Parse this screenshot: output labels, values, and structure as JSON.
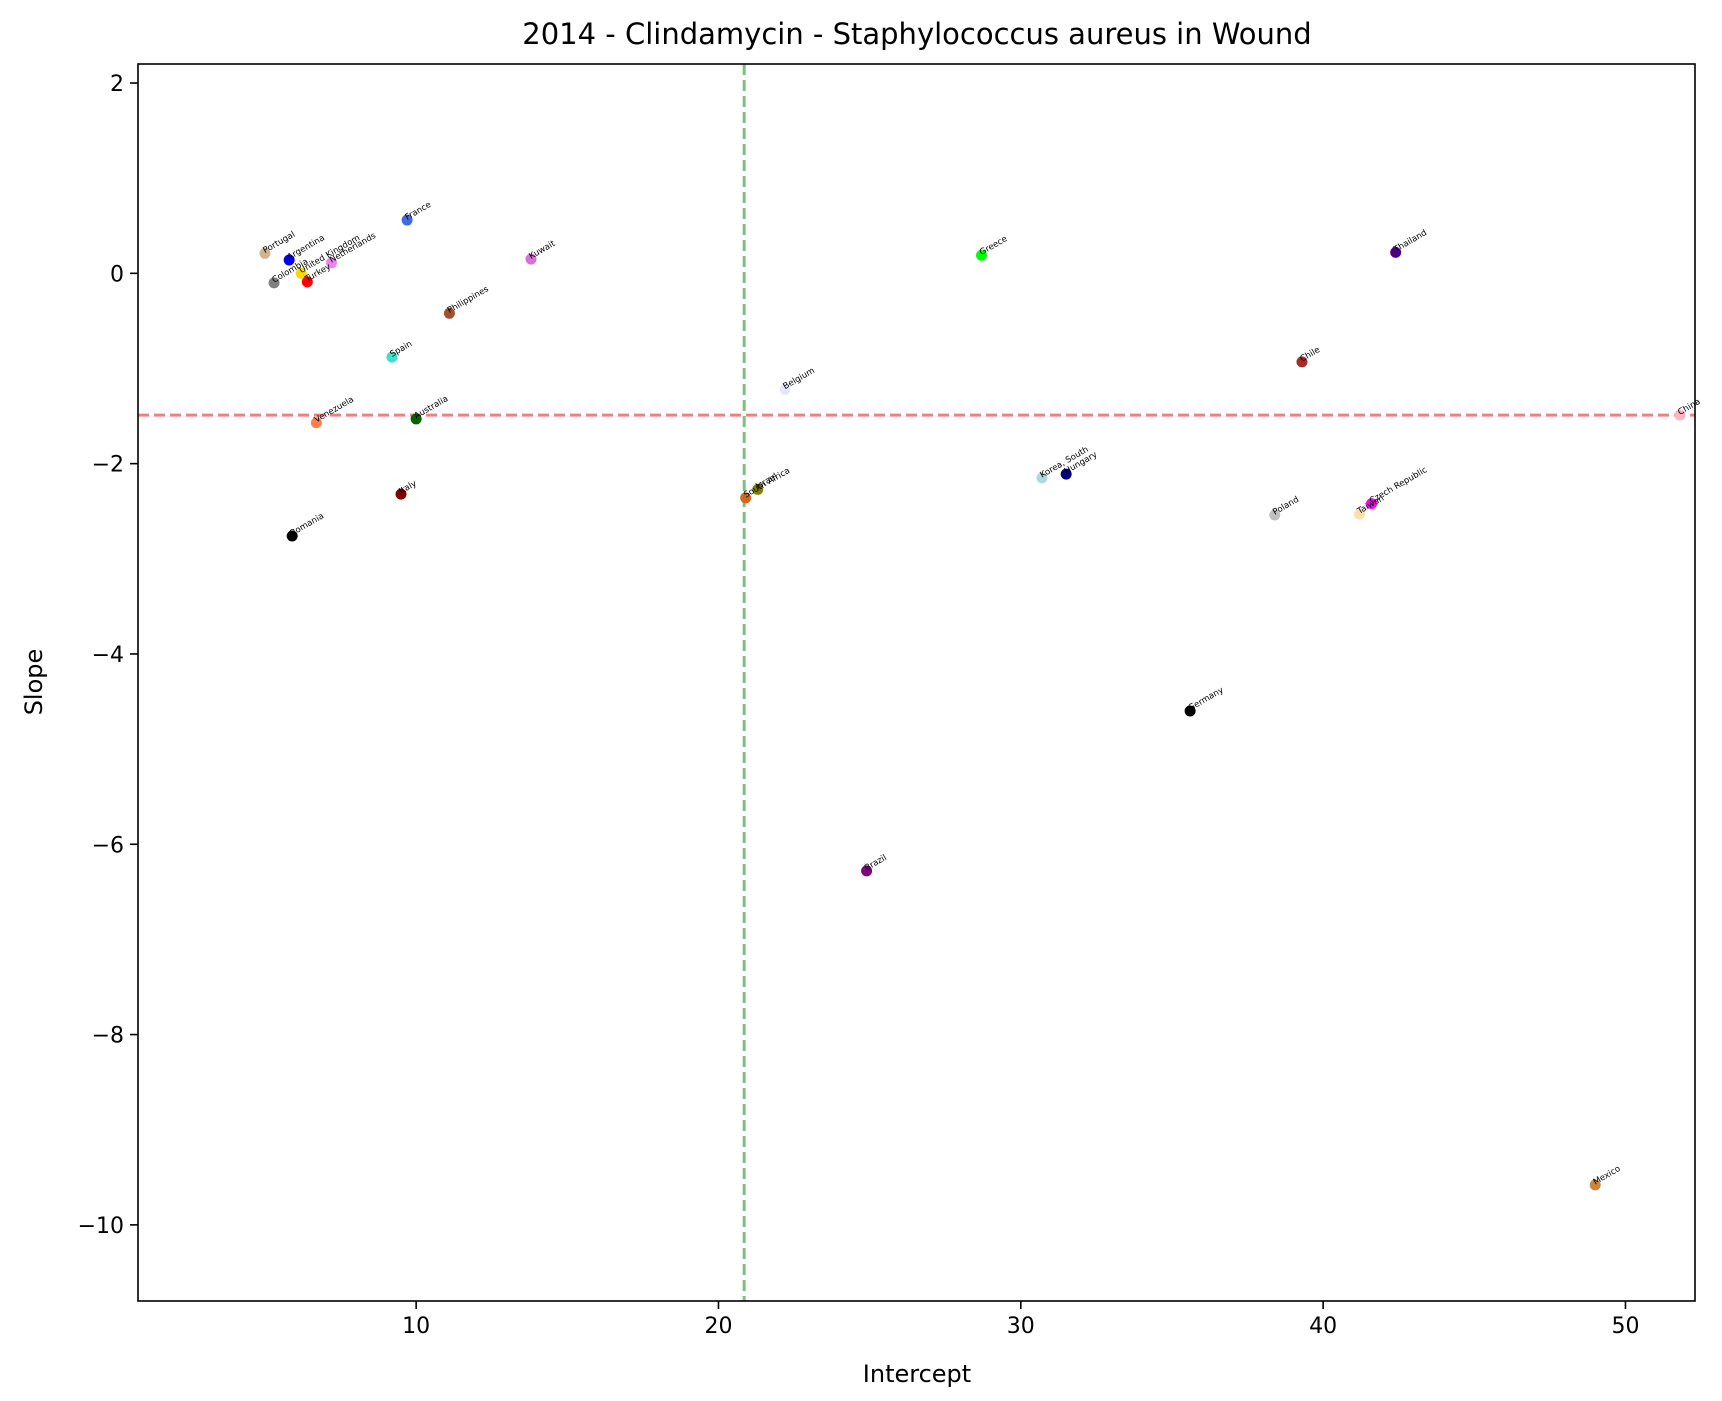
{
  "chart_data": {
    "type": "scatter",
    "title": "2014 - Clindamycin - Staphylococcus aureus in Wound",
    "xlabel": "Intercept",
    "ylabel": "Slope",
    "xlim": [
      0.8,
      52.3
    ],
    "ylim": [
      -10.8,
      2.2
    ],
    "xticks": [
      10,
      20,
      30,
      40,
      50
    ],
    "yticks": [
      2,
      0,
      -2,
      -4,
      -6,
      -8,
      -10
    ],
    "grid": false,
    "reference_lines": [
      {
        "orientation": "horizontal",
        "value": -1.49,
        "color": "#f08080",
        "style": "dashed"
      },
      {
        "orientation": "vertical",
        "value": 20.85,
        "color": "#7fbf7f",
        "style": "dashed"
      }
    ],
    "points": [
      {
        "label": "Portugal",
        "x": 5.0,
        "y": 0.21,
        "color": "#d2b48c"
      },
      {
        "label": "Argentina",
        "x": 5.8,
        "y": 0.14,
        "color": "#0000ff"
      },
      {
        "label": "Colombia",
        "x": 5.3,
        "y": -0.1,
        "color": "#808080"
      },
      {
        "label": "United Kingdom",
        "x": 6.2,
        "y": 0.0,
        "color": "#ffd700"
      },
      {
        "label": "Netherlands",
        "x": 7.2,
        "y": 0.11,
        "color": "#ee82ee"
      },
      {
        "label": "Turkey",
        "x": 6.4,
        "y": -0.09,
        "color": "#ff0000"
      },
      {
        "label": "France",
        "x": 9.7,
        "y": 0.56,
        "color": "#4169e1"
      },
      {
        "label": "Kuwait",
        "x": 13.8,
        "y": 0.15,
        "color": "#da70d6"
      },
      {
        "label": "Philippines",
        "x": 11.1,
        "y": -0.42,
        "color": "#a0522d"
      },
      {
        "label": "Spain",
        "x": 9.2,
        "y": -0.88,
        "color": "#40e0d0"
      },
      {
        "label": "Venezuela",
        "x": 6.7,
        "y": -1.57,
        "color": "#ff7f50"
      },
      {
        "label": "Australia",
        "x": 10.0,
        "y": -1.53,
        "color": "#006400"
      },
      {
        "label": "Italy",
        "x": 9.5,
        "y": -2.32,
        "color": "#800000"
      },
      {
        "label": "Romania",
        "x": 5.9,
        "y": -2.76,
        "color": "#000000"
      },
      {
        "label": "Greece",
        "x": 28.7,
        "y": 0.19,
        "color": "#00ff00"
      },
      {
        "label": "Belgium",
        "x": 22.2,
        "y": -1.22,
        "color": "#e6e6fa"
      },
      {
        "label": "South Africa",
        "x": 20.9,
        "y": -2.36,
        "color": "#d2691e"
      },
      {
        "label": "Israel",
        "x": 21.3,
        "y": -2.27,
        "color": "#808000"
      },
      {
        "label": "Thailand",
        "x": 42.4,
        "y": 0.22,
        "color": "#4b0082"
      },
      {
        "label": "Chile",
        "x": 39.3,
        "y": -0.93,
        "color": "#a52a2a"
      },
      {
        "label": "China",
        "x": 51.8,
        "y": -1.49,
        "color": "#ffb6c1"
      },
      {
        "label": "Korea, South",
        "x": 30.7,
        "y": -2.15,
        "color": "#add8e6"
      },
      {
        "label": "Hungary",
        "x": 31.5,
        "y": -2.11,
        "color": "#000080"
      },
      {
        "label": "Poland",
        "x": 38.4,
        "y": -2.54,
        "color": "#c0c0c0"
      },
      {
        "label": "Czech Republic",
        "x": 41.6,
        "y": -2.42,
        "color": "#ff00ff"
      },
      {
        "label": "Taiwan",
        "x": 41.2,
        "y": -2.53,
        "color": "#ffdead"
      },
      {
        "label": "Germany",
        "x": 35.6,
        "y": -4.6,
        "color": "#000000"
      },
      {
        "label": "Brazil",
        "x": 24.9,
        "y": -6.28,
        "color": "#800080"
      },
      {
        "label": "Mexico",
        "x": 49.0,
        "y": -9.58,
        "color": "#cd853f"
      }
    ]
  }
}
